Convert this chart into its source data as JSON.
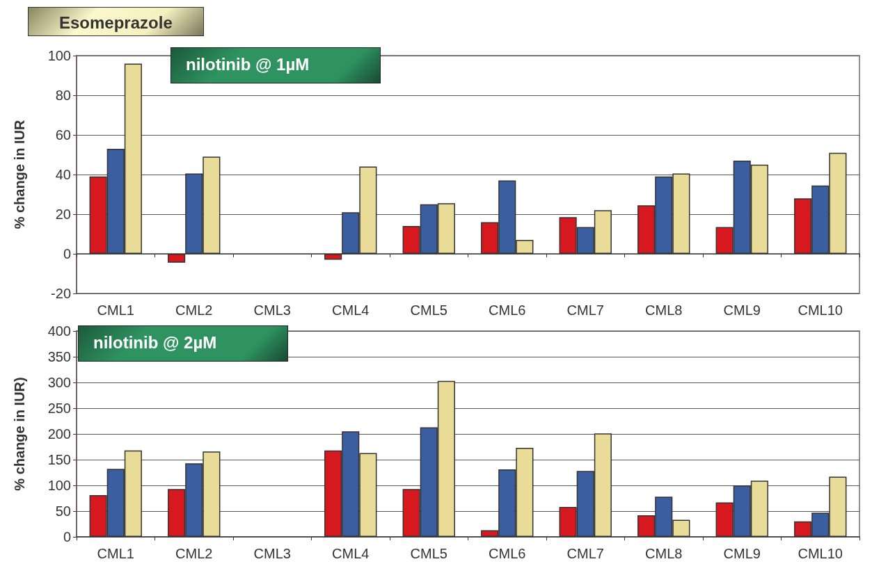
{
  "chart_data": [
    {
      "type": "bar",
      "title": "Esomeprazole",
      "subtitle": "nilotinib @ 1µM",
      "ylabel": "% change in IUR",
      "categories": [
        "CML1",
        "CML2",
        "CML3",
        "CML4",
        "CML5",
        "CML6",
        "CML7",
        "CML8",
        "CML9",
        "CML10"
      ],
      "series": [
        {
          "color": "#d7191f",
          "values": [
            39,
            -4.5,
            null,
            -3,
            14,
            16,
            18.5,
            24.5,
            13.5,
            28
          ]
        },
        {
          "color": "#3b5ea0",
          "values": [
            53,
            40.5,
            null,
            21,
            25,
            37,
            13.5,
            39,
            47,
            34.5
          ]
        },
        {
          "color": "#e8dc98",
          "values": [
            96,
            49,
            null,
            44,
            25.5,
            7,
            22,
            40.5,
            45,
            51
          ]
        }
      ],
      "ylim": [
        -20,
        100
      ],
      "yticks": [
        -20,
        0,
        20,
        40,
        60,
        80,
        100
      ],
      "grid": "y"
    },
    {
      "type": "bar",
      "subtitle": "nilotinib @ 2µM",
      "ylabel": "% change in IUR)",
      "categories": [
        "CML1",
        "CML2",
        "CML3",
        "CML4",
        "CML5",
        "CML6",
        "CML7",
        "CML8",
        "CML9",
        "CML10"
      ],
      "series": [
        {
          "color": "#d7191f",
          "values": [
            81,
            93,
            null,
            168,
            93,
            13,
            58,
            42,
            67,
            30
          ]
        },
        {
          "color": "#3b5ea0",
          "values": [
            132,
            143,
            null,
            205,
            213,
            131,
            128,
            78,
            100,
            47
          ]
        },
        {
          "color": "#e8dc98",
          "values": [
            168,
            166,
            null,
            163,
            303,
            173,
            201,
            33,
            109,
            117
          ]
        }
      ],
      "ylim": [
        0,
        400
      ],
      "yticks": [
        0,
        50,
        100,
        150,
        200,
        250,
        300,
        350,
        400
      ],
      "grid": "y"
    }
  ]
}
